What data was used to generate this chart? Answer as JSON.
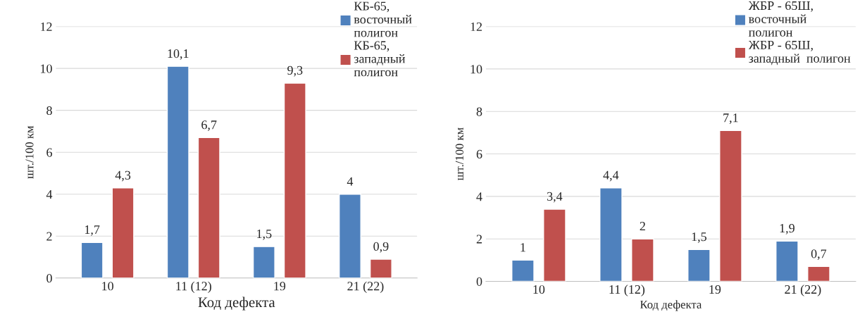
{
  "chart_data": [
    {
      "type": "bar",
      "categories": [
        "10",
        "11 (12)",
        "19",
        "21 (22)"
      ],
      "xlabel": "Код дефекта",
      "ylabel": "шт./100 км",
      "ylim": [
        0,
        12
      ],
      "yticks": [
        0,
        2,
        4,
        6,
        8,
        10,
        12
      ],
      "grid": "y",
      "legend": "top right",
      "series": [
        {
          "name": "КБ-65,\nвосточный\nполигон",
          "color": "#4f81bd",
          "values": [
            1.7,
            10.1,
            1.5,
            4
          ],
          "value_labels": [
            "1,7",
            "10,1",
            "1,5",
            "4"
          ]
        },
        {
          "name": "КБ-65,\nзападный\nполигон",
          "color": "#c0504d",
          "values": [
            4.3,
            6.7,
            9.3,
            0.9
          ],
          "value_labels": [
            "4,3",
            "6,7",
            "9,3",
            "0,9"
          ]
        }
      ]
    },
    {
      "type": "bar",
      "categories": [
        "10",
        "11 (12)",
        "19",
        "21 (22)"
      ],
      "xlabel": "Код дефекта",
      "ylabel": "шт./100 км",
      "ylim": [
        0,
        12
      ],
      "yticks": [
        0,
        2,
        4,
        6,
        8,
        10,
        12
      ],
      "grid": "y",
      "legend": "top right",
      "series": [
        {
          "name": "ЖБР - 65Ш,\nвосточный\nполигон",
          "color": "#4f81bd",
          "values": [
            1,
            4.4,
            1.5,
            1.9
          ],
          "value_labels": [
            "1",
            "4,4",
            "1,5",
            "1,9"
          ]
        },
        {
          "name": "ЖБР - 65Ш,\nзападный  полигон",
          "color": "#c0504d",
          "values": [
            3.4,
            2,
            7.1,
            0.7
          ],
          "value_labels": [
            "3,4",
            "2",
            "7,1",
            "0,7"
          ]
        }
      ]
    }
  ]
}
